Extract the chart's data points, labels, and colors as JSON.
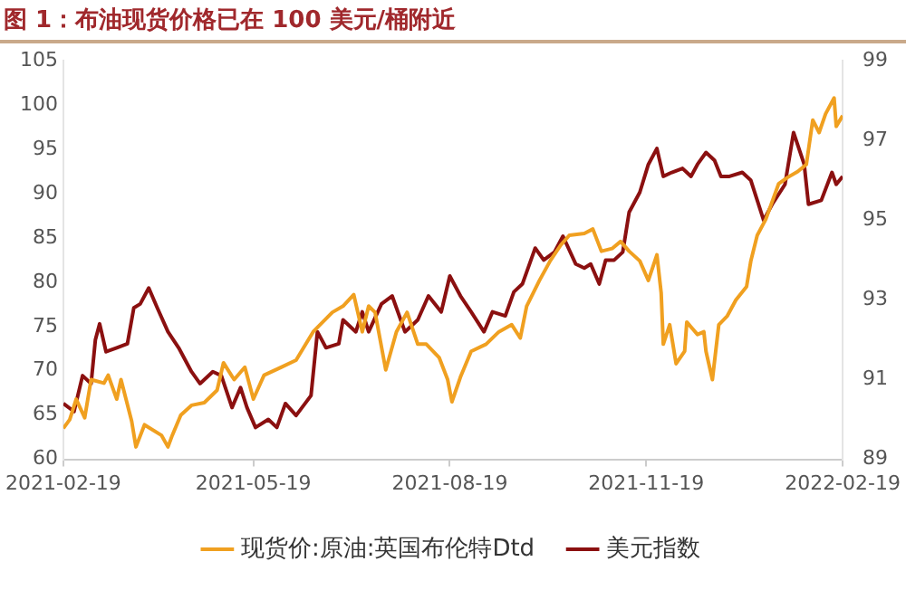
{
  "chart_data": {
    "type": "line",
    "title": "图 1：布油现货价格已在 100 美元/桶附近",
    "xlim": [
      "2021-02-19",
      "2022-02-19"
    ],
    "xticks": [
      "2021-02-19",
      "2021-05-19",
      "2021-08-19",
      "2021-11-19",
      "2022-02-19"
    ],
    "ylim": [
      60,
      105
    ],
    "yticks": [
      60,
      65,
      70,
      75,
      80,
      85,
      90,
      95,
      100,
      105
    ],
    "y2lim": [
      89,
      99
    ],
    "y2ticks": [
      89,
      91,
      93,
      95,
      97,
      99
    ],
    "legend": "bottom",
    "grid": false,
    "series": [
      {
        "name": "现货价:原油:英国布伦特Dtd",
        "color": "#f0a020",
        "x": [
          "2021-02-19",
          "2021-02-22",
          "2021-02-25",
          "2021-03-01",
          "2021-03-04",
          "2021-03-10",
          "2021-03-12",
          "2021-03-16",
          "2021-03-18",
          "2021-03-23",
          "2021-03-25",
          "2021-03-29",
          "2021-04-06",
          "2021-04-09",
          "2021-04-11",
          "2021-04-15",
          "2021-04-20",
          "2021-04-26",
          "2021-05-02",
          "2021-05-05",
          "2021-05-10",
          "2021-05-15",
          "2021-05-19",
          "2021-05-24",
          "2021-06-01",
          "2021-06-08",
          "2021-06-16",
          "2021-06-25",
          "2021-06-30",
          "2021-07-05",
          "2021-07-09",
          "2021-07-12",
          "2021-07-15",
          "2021-07-20",
          "2021-07-25",
          "2021-07-30",
          "2021-08-04",
          "2021-08-08",
          "2021-08-14",
          "2021-08-18",
          "2021-08-20",
          "2021-08-24",
          "2021-08-29",
          "2021-09-05",
          "2021-09-11",
          "2021-09-17",
          "2021-09-21",
          "2021-09-24",
          "2021-09-30",
          "2021-10-05",
          "2021-10-10",
          "2021-10-14",
          "2021-10-21",
          "2021-10-25",
          "2021-10-29",
          "2021-11-03",
          "2021-11-07",
          "2021-11-11",
          "2021-11-16",
          "2021-11-20",
          "2021-11-24",
          "2021-11-26",
          "2021-11-27",
          "2021-11-30",
          "2021-12-03",
          "2021-12-07",
          "2021-12-08",
          "2021-12-13",
          "2021-12-16",
          "2021-12-17",
          "2021-12-20",
          "2021-12-23",
          "2021-12-27",
          "2021-12-31",
          "2022-01-05",
          "2022-01-07",
          "2022-01-10",
          "2022-01-14",
          "2022-01-20",
          "2022-01-24",
          "2022-01-29",
          "2022-02-02",
          "2022-02-05",
          "2022-02-08",
          "2022-02-11",
          "2022-02-15",
          "2022-02-16",
          "2022-02-19"
        ],
        "values": [
          63.5,
          64.5,
          66.8,
          64.7,
          69,
          68.6,
          69.5,
          66.8,
          69,
          64.3,
          61.4,
          63.9,
          62.7,
          61.4,
          62.7,
          65,
          66.1,
          66.4,
          67.8,
          70.9,
          69,
          70.4,
          66.8,
          69.5,
          70.4,
          71.2,
          74.4,
          76.6,
          77.3,
          78.6,
          74.4,
          77.3,
          76.6,
          70.1,
          74.4,
          76.6,
          73,
          73,
          71.5,
          69,
          66.5,
          69.3,
          72.2,
          73,
          74.4,
          75.2,
          73.7,
          77.3,
          80.2,
          82.4,
          84.2,
          85.3,
          85.5,
          86,
          83.5,
          83.8,
          84.6,
          83.5,
          82.4,
          80.2,
          83.1,
          78.8,
          73,
          75.2,
          70.8,
          72.2,
          75.5,
          74.1,
          74.4,
          72.2,
          69,
          75.2,
          76.2,
          78,
          79.5,
          82.4,
          85.3,
          87.1,
          91.1,
          91.8,
          92.5,
          93.3,
          98.3,
          96.9,
          99,
          100.8,
          97.6,
          98.8
        ]
      },
      {
        "name": "美元指数",
        "color": "#8b1010",
        "axis": "y2",
        "x": [
          "2021-02-19",
          "2021-02-24",
          "2021-02-28",
          "2021-03-04",
          "2021-03-06",
          "2021-03-08",
          "2021-03-11",
          "2021-03-16",
          "2021-03-21",
          "2021-03-24",
          "2021-03-27",
          "2021-03-31",
          "2021-04-04",
          "2021-04-09",
          "2021-04-14",
          "2021-04-20",
          "2021-04-24",
          "2021-04-30",
          "2021-05-04",
          "2021-05-09",
          "2021-05-13",
          "2021-05-16",
          "2021-05-20",
          "2021-05-26",
          "2021-05-30",
          "2021-06-03",
          "2021-06-08",
          "2021-06-15",
          "2021-06-18",
          "2021-06-22",
          "2021-06-28",
          "2021-06-30",
          "2021-07-06",
          "2021-07-09",
          "2021-07-12",
          "2021-07-18",
          "2021-07-23",
          "2021-07-29",
          "2021-08-04",
          "2021-08-09",
          "2021-08-15",
          "2021-08-19",
          "2021-08-24",
          "2021-08-29",
          "2021-09-04",
          "2021-09-08",
          "2021-09-14",
          "2021-09-18",
          "2021-09-22",
          "2021-09-28",
          "2021-10-02",
          "2021-10-07",
          "2021-10-11",
          "2021-10-17",
          "2021-10-21",
          "2021-10-24",
          "2021-10-28",
          "2021-10-31",
          "2021-11-04",
          "2021-11-08",
          "2021-11-11",
          "2021-11-16",
          "2021-11-20",
          "2021-11-24",
          "2021-11-27",
          "2021-12-01",
          "2021-12-06",
          "2021-12-10",
          "2021-12-13",
          "2021-12-17",
          "2021-12-21",
          "2021-12-24",
          "2021-12-28",
          "2022-01-03",
          "2022-01-07",
          "2022-01-10",
          "2022-01-13",
          "2022-01-17",
          "2022-01-23",
          "2022-01-27",
          "2022-02-01",
          "2022-02-03",
          "2022-02-09",
          "2022-02-14",
          "2022-02-16",
          "2022-02-19"
        ],
        "values": [
          90.4,
          90.2,
          91.1,
          90.9,
          92.0,
          92.4,
          91.7,
          91.8,
          91.9,
          92.8,
          92.9,
          93.3,
          92.8,
          92.2,
          91.8,
          91.2,
          90.9,
          91.2,
          91.1,
          90.3,
          90.8,
          90.3,
          89.8,
          90.0,
          89.8,
          90.4,
          90.1,
          90.6,
          92.2,
          91.8,
          91.9,
          92.5,
          92.2,
          92.7,
          92.2,
          92.9,
          93.1,
          92.2,
          92.5,
          93.1,
          92.7,
          93.6,
          93.1,
          92.7,
          92.2,
          92.7,
          92.6,
          93.2,
          93.4,
          94.3,
          94.0,
          94.2,
          94.6,
          93.9,
          93.8,
          93.9,
          93.4,
          94.0,
          94.0,
          94.2,
          95.2,
          95.7,
          96.4,
          96.8,
          96.1,
          96.2,
          96.3,
          96.1,
          96.4,
          96.7,
          96.5,
          96.1,
          96.1,
          96.2,
          96.0,
          95.5,
          95.0,
          95.4,
          95.9,
          97.2,
          96.4,
          95.4,
          95.5,
          96.2,
          95.9,
          96.1
        ]
      }
    ]
  }
}
